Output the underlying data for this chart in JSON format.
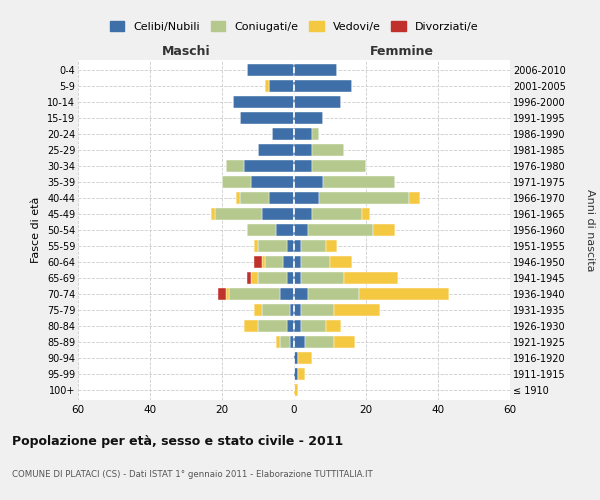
{
  "age_groups": [
    "100+",
    "95-99",
    "90-94",
    "85-89",
    "80-84",
    "75-79",
    "70-74",
    "65-69",
    "60-64",
    "55-59",
    "50-54",
    "45-49",
    "40-44",
    "35-39",
    "30-34",
    "25-29",
    "20-24",
    "15-19",
    "10-14",
    "5-9",
    "0-4"
  ],
  "birth_years": [
    "≤ 1910",
    "1911-1915",
    "1916-1920",
    "1921-1925",
    "1926-1930",
    "1931-1935",
    "1936-1940",
    "1941-1945",
    "1946-1950",
    "1951-1955",
    "1956-1960",
    "1961-1965",
    "1966-1970",
    "1971-1975",
    "1976-1980",
    "1981-1985",
    "1986-1990",
    "1991-1995",
    "1996-2000",
    "2001-2005",
    "2006-2010"
  ],
  "maschi_celibi": [
    0,
    0,
    0,
    1,
    2,
    1,
    4,
    2,
    3,
    2,
    5,
    9,
    7,
    12,
    14,
    10,
    6,
    15,
    17,
    7,
    13
  ],
  "maschi_coniugati": [
    0,
    0,
    0,
    3,
    8,
    8,
    14,
    8,
    5,
    8,
    8,
    13,
    8,
    8,
    5,
    0,
    0,
    0,
    0,
    0,
    0
  ],
  "maschi_vedovi": [
    0,
    0,
    0,
    1,
    4,
    2,
    1,
    2,
    1,
    1,
    0,
    1,
    1,
    0,
    0,
    0,
    0,
    0,
    0,
    1,
    0
  ],
  "maschi_divorziati": [
    0,
    0,
    0,
    0,
    0,
    0,
    2,
    1,
    2,
    0,
    0,
    0,
    0,
    0,
    0,
    0,
    0,
    0,
    0,
    0,
    0
  ],
  "femmine_celibi": [
    0,
    1,
    1,
    3,
    2,
    2,
    4,
    2,
    2,
    2,
    4,
    5,
    7,
    8,
    5,
    5,
    5,
    8,
    13,
    16,
    12
  ],
  "femmine_coniugati": [
    0,
    0,
    0,
    8,
    7,
    9,
    14,
    12,
    8,
    7,
    18,
    14,
    25,
    20,
    15,
    9,
    2,
    0,
    0,
    0,
    0
  ],
  "femmine_vedovi": [
    1,
    2,
    4,
    6,
    4,
    13,
    25,
    15,
    6,
    3,
    6,
    2,
    3,
    0,
    0,
    0,
    0,
    0,
    0,
    0,
    0
  ],
  "femmine_divorziati": [
    0,
    0,
    0,
    0,
    0,
    0,
    0,
    0,
    0,
    0,
    0,
    0,
    0,
    0,
    0,
    0,
    0,
    0,
    0,
    0,
    0
  ],
  "color_celibi": "#3e6fa8",
  "color_coniugati": "#b5c98e",
  "color_vedovi": "#f5c842",
  "color_divorziati": "#c0312b",
  "xlim": 60,
  "title": "Popolazione per età, sesso e stato civile - 2011",
  "subtitle": "COMUNE DI PLATACI (CS) - Dati ISTAT 1° gennaio 2011 - Elaborazione TUTTITALIA.IT",
  "ylabel": "Fasce di età",
  "right_ylabel": "Anni di nascita",
  "xlabel_maschi": "Maschi",
  "xlabel_femmine": "Femmine",
  "legend_labels": [
    "Celibi/Nubili",
    "Coniugati/e",
    "Vedovi/e",
    "Divorziati/e"
  ],
  "bg_color": "#f0f0f0",
  "plot_bg": "#ffffff"
}
